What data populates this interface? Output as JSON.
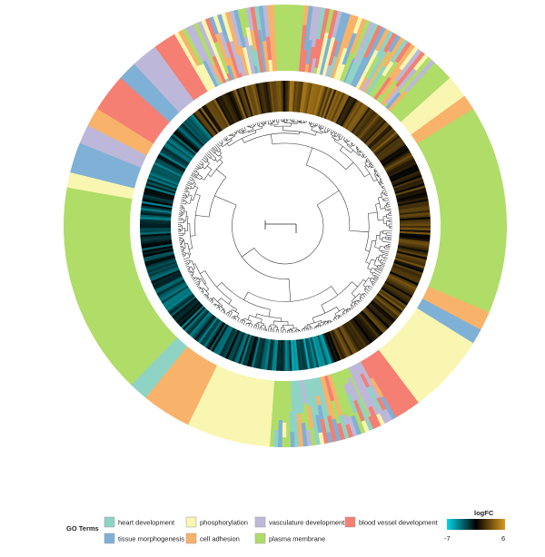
{
  "legend": {
    "title": "GO Terms",
    "items": [
      {
        "key": "heart",
        "label": "heart development",
        "color": "#8fd3c5"
      },
      {
        "key": "tissue",
        "label": "tissue morphogenesis",
        "color": "#7fb0d6"
      },
      {
        "key": "phos",
        "label": "phosphorylation",
        "color": "#f8f6b0"
      },
      {
        "key": "adhesion",
        "label": "cell adhesion",
        "color": "#f9b26a"
      },
      {
        "key": "vasc",
        "label": "vasculature development",
        "color": "#bdb8d9"
      },
      {
        "key": "membrane",
        "label": "plasma membrane",
        "color": "#b0dc68"
      },
      {
        "key": "blood",
        "label": "blood vessel development",
        "color": "#f47f72"
      }
    ]
  },
  "colorbar": {
    "title": "logFC",
    "min_label": "-7",
    "max_label": "6",
    "min_color": "#00d8e8",
    "mid_color": "#000000",
    "max_color": "#d89a1e"
  },
  "outer_ring": {
    "segments": [
      {
        "start": 0,
        "end": 6,
        "color": "#b0dc68"
      },
      {
        "start": 6,
        "end": 11,
        "color": "#f47f72"
      },
      {
        "start": 11,
        "end": 14,
        "color": "#7fb0d6"
      },
      {
        "start": 14,
        "end": 22,
        "color": "#b0dc68"
      },
      {
        "start": 22,
        "end": 27,
        "color": "#7fb0d6"
      },
      {
        "start": 27,
        "end": 31,
        "color": "#f9b26a"
      },
      {
        "start": 31,
        "end": 40,
        "color": "#b0dc68"
      },
      {
        "start": 40,
        "end": 48,
        "color": "#b0dc68"
      },
      {
        "start": 48,
        "end": 54,
        "color": "#f8f6b0"
      },
      {
        "start": 54,
        "end": 58,
        "color": "#f9b26a"
      },
      {
        "start": 58,
        "end": 96,
        "color": "#b0dc68"
      },
      {
        "start": 96,
        "end": 104,
        "color": "#b0dc68"
      },
      {
        "start": 104,
        "end": 113,
        "color": "#b0dc68"
      },
      {
        "start": 113,
        "end": 118,
        "color": "#f9b26a"
      },
      {
        "start": 118,
        "end": 122,
        "color": "#7fb0d6"
      },
      {
        "start": 122,
        "end": 143,
        "color": "#f8f6b0"
      },
      {
        "start": 143,
        "end": 151,
        "color": "#f47f72"
      },
      {
        "start": 151,
        "end": 156,
        "color": "#bdb8d9"
      },
      {
        "start": 156,
        "end": 163,
        "color": "#b0dc68"
      },
      {
        "start": 163,
        "end": 167,
        "color": "#f9b26a"
      },
      {
        "start": 167,
        "end": 173,
        "color": "#8fd3c5"
      },
      {
        "start": 173,
        "end": 178,
        "color": "#8fd3c5"
      },
      {
        "start": 178,
        "end": 184,
        "color": "#b0dc68"
      },
      {
        "start": 184,
        "end": 206,
        "color": "#f8f6b0"
      },
      {
        "start": 206,
        "end": 219,
        "color": "#f9b26a"
      },
      {
        "start": 219,
        "end": 224,
        "color": "#8fd3c5"
      },
      {
        "start": 224,
        "end": 262,
        "color": "#b0dc68"
      },
      {
        "start": 262,
        "end": 268,
        "color": "#b0dc68"
      },
      {
        "start": 268,
        "end": 280,
        "color": "#b0dc68"
      },
      {
        "start": 280,
        "end": 284,
        "color": "#f8f6b0"
      },
      {
        "start": 284,
        "end": 292,
        "color": "#7fb0d6"
      },
      {
        "start": 292,
        "end": 297,
        "color": "#bdb8d9"
      },
      {
        "start": 297,
        "end": 302,
        "color": "#f9b26a"
      },
      {
        "start": 302,
        "end": 307,
        "color": "#f47f72"
      },
      {
        "start": 307,
        "end": 312,
        "color": "#f47f72"
      },
      {
        "start": 312,
        "end": 317,
        "color": "#7fb0d6"
      },
      {
        "start": 317,
        "end": 324,
        "color": "#bdb8d9"
      },
      {
        "start": 324,
        "end": 330,
        "color": "#f47f72"
      },
      {
        "start": 330,
        "end": 334,
        "color": "#f8f6b0"
      },
      {
        "start": 334,
        "end": 339,
        "color": "#8fd3c5"
      },
      {
        "start": 339,
        "end": 344,
        "color": "#f47f72"
      },
      {
        "start": 344,
        "end": 349,
        "color": "#bdb8d9"
      },
      {
        "start": 349,
        "end": 353,
        "color": "#7fb0d6"
      },
      {
        "start": 353,
        "end": 357,
        "color": "#f9b26a"
      },
      {
        "start": 357,
        "end": 360,
        "color": "#b0dc68"
      }
    ]
  }
}
